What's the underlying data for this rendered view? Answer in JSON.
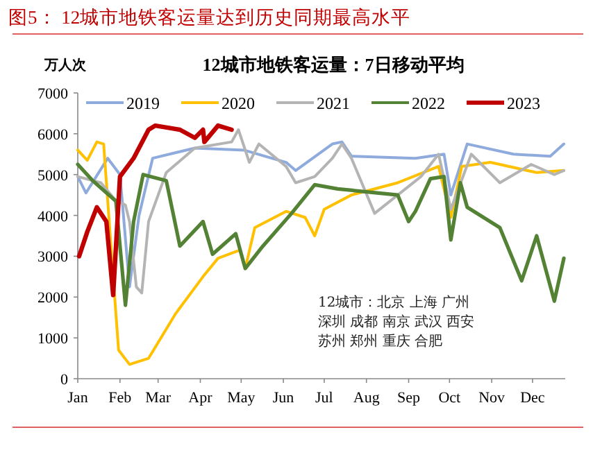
{
  "chart_data": {
    "type": "line",
    "title": "图5： 12城市地铁客运量达到历史同期最高水平",
    "subtitle": "12城市地铁客运量：7日移动平均",
    "ylabel": "万人次",
    "ylim": [
      0,
      7000
    ],
    "yticks": [
      0,
      1000,
      2000,
      3000,
      4000,
      5000,
      6000,
      7000
    ],
    "xlim": [
      "--01-01",
      "--12-25"
    ],
    "xticks": [
      {
        "value": "--01-01",
        "label": "Jan"
      },
      {
        "value": "--02-01",
        "label": "Feb"
      },
      {
        "value": "--03-01",
        "label": "Mar"
      },
      {
        "value": "--04-01",
        "label": "Apr"
      },
      {
        "value": "--05-01",
        "label": "May"
      },
      {
        "value": "--06-01",
        "label": "Jun"
      },
      {
        "value": "--07-01",
        "label": "Jul"
      },
      {
        "value": "--08-01",
        "label": "Aug"
      },
      {
        "value": "--09-01",
        "label": "Sep"
      },
      {
        "value": "--10-01",
        "label": "Oct"
      },
      {
        "value": "--11-01",
        "label": "Nov"
      },
      {
        "value": "--12-01",
        "label": "Dec"
      }
    ],
    "legend": "top",
    "line_style": "solid",
    "marker": "none",
    "annotations": [
      "12城市：北京 上海 广州",
      "深圳 成都 南京 武汉 西安",
      "苏州 郑州 重庆 合肥"
    ],
    "series": [
      {
        "name": "2019",
        "color": "#8faadc",
        "x": [
          "--01-01",
          "--01-07",
          "--01-23",
          "--02-01",
          "--02-08",
          "--02-15",
          "--02-25",
          "--03-28",
          "--05-03",
          "--06-03",
          "--06-10",
          "--07-07",
          "--07-14",
          "--07-21",
          "--09-06",
          "--09-27",
          "--10-02",
          "--10-14",
          "--11-17",
          "--12-14",
          "--12-24"
        ],
        "values": [
          4950,
          4550,
          5400,
          5000,
          2250,
          4000,
          5400,
          5650,
          5600,
          5300,
          5100,
          5750,
          5800,
          5450,
          5400,
          5500,
          4500,
          5750,
          5500,
          5450,
          5750
        ]
      },
      {
        "name": "2020",
        "color": "#ffc000",
        "x": [
          "--01-01",
          "--01-08",
          "--01-15",
          "--01-20",
          "--01-27",
          "--01-31",
          "--02-08",
          "--02-22",
          "--03-14",
          "--04-03",
          "--04-14",
          "--04-30",
          "--05-04",
          "--05-11",
          "--06-03",
          "--06-17",
          "--06-24",
          "--07-01",
          "--07-21",
          "--08-24",
          "--09-23",
          "--10-02",
          "--10-10",
          "--10-31",
          "--12-04",
          "--12-24"
        ],
        "values": [
          5600,
          5350,
          5800,
          5750,
          2500,
          700,
          350,
          500,
          1600,
          2500,
          2950,
          3150,
          2700,
          3700,
          4100,
          3950,
          3500,
          4150,
          4500,
          4800,
          5200,
          3950,
          5200,
          5300,
          5050,
          5100
        ]
      },
      {
        "name": "2021",
        "color": "#b4b4b4",
        "x": [
          "--01-01",
          "--01-18",
          "--01-28",
          "--02-05",
          "--02-08",
          "--02-13",
          "--02-17",
          "--02-22",
          "--03-07",
          "--03-28",
          "--04-24",
          "--04-29",
          "--05-07",
          "--05-14",
          "--06-03",
          "--06-10",
          "--06-24",
          "--07-07",
          "--07-14",
          "--07-21",
          "--08-07",
          "--09-10",
          "--09-23",
          "--10-02",
          "--10-17",
          "--11-07",
          "--11-30",
          "--12-17",
          "--12-24"
        ],
        "values": [
          4950,
          4800,
          4400,
          4250,
          3850,
          2250,
          2100,
          3850,
          5050,
          5650,
          5800,
          6100,
          5300,
          5750,
          5200,
          4800,
          4950,
          5400,
          5750,
          5400,
          4050,
          4950,
          5500,
          4150,
          5500,
          4800,
          5250,
          5000,
          5100
        ]
      },
      {
        "name": "2022",
        "color": "#548235",
        "x": [
          "--01-01",
          "--01-12",
          "--01-29",
          "--02-05",
          "--02-11",
          "--02-18",
          "--03-07",
          "--03-17",
          "--04-03",
          "--04-10",
          "--04-27",
          "--05-04",
          "--05-17",
          "--06-07",
          "--06-24",
          "--07-11",
          "--08-24",
          "--09-01",
          "--09-06",
          "--09-17",
          "--09-27",
          "--10-02",
          "--10-09",
          "--10-14",
          "--11-07",
          "--11-23",
          "--12-04",
          "--12-17",
          "--12-24"
        ],
        "values": [
          5250,
          4850,
          4350,
          1800,
          3850,
          5000,
          4850,
          3250,
          3850,
          3050,
          3550,
          2700,
          3250,
          4050,
          4750,
          4650,
          4500,
          3850,
          4100,
          4900,
          4950,
          3400,
          4800,
          4200,
          3700,
          2400,
          3500,
          1900,
          2950
        ]
      },
      {
        "name": "2023",
        "color": "#c00000",
        "x": [
          "--01-02",
          "--01-08",
          "--01-15",
          "--01-22",
          "--01-27",
          "--02-01",
          "--02-11",
          "--02-22",
          "--02-27",
          "--03-17",
          "--03-28",
          "--04-03",
          "--04-04",
          "--04-14",
          "--04-24"
        ],
        "values": [
          3000,
          3600,
          4200,
          3850,
          2050,
          4950,
          5400,
          6100,
          6200,
          6100,
          5900,
          6100,
          5800,
          6200,
          6100
        ]
      }
    ]
  }
}
